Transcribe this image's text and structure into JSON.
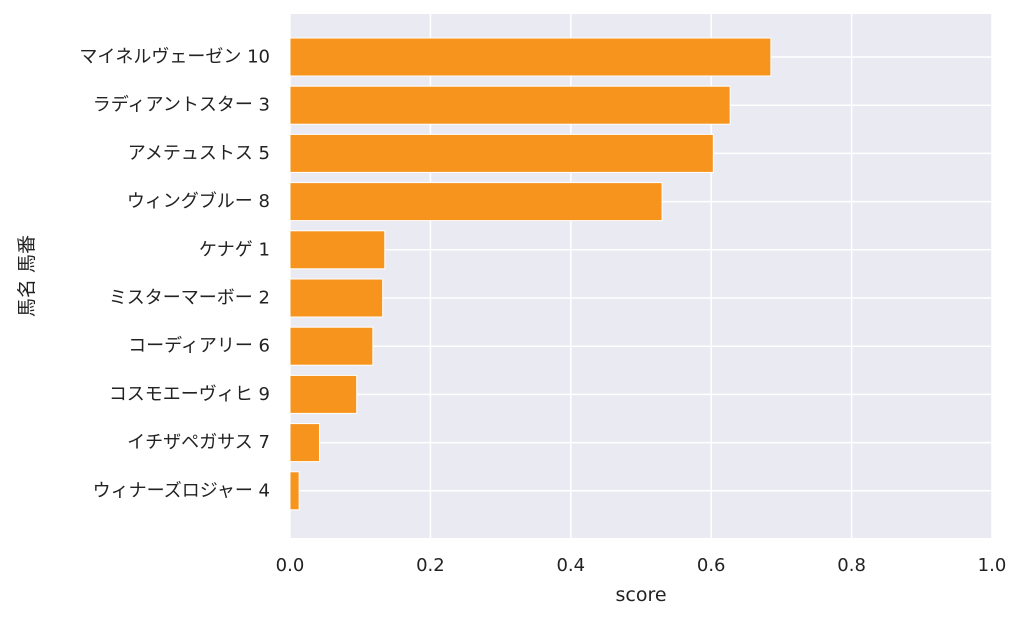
{
  "chart_data": {
    "type": "bar",
    "orientation": "horizontal",
    "categories": [
      "マイネルヴェーゼン 10",
      "ラディアントスター 3",
      "アメテュストス 5",
      "ウィングブルー 8",
      "ケナゲ 1",
      "ミスターマーボー 2",
      "コーディアリー 6",
      "コスモエーヴィヒ 9",
      "イチザペガサス 7",
      "ウィナーズロジャー 4"
    ],
    "values": [
      0.685,
      0.627,
      0.603,
      0.53,
      0.135,
      0.132,
      0.118,
      0.095,
      0.042,
      0.013
    ],
    "xlabel": "score",
    "ylabel": "馬名 馬番",
    "xlim": [
      0,
      1
    ],
    "xticks": [
      "0.0",
      "0.2",
      "0.4",
      "0.6",
      "0.8",
      "1.0"
    ],
    "grid": true,
    "bar_color": "#f7941d",
    "plot_background": "#eaeaf2"
  }
}
